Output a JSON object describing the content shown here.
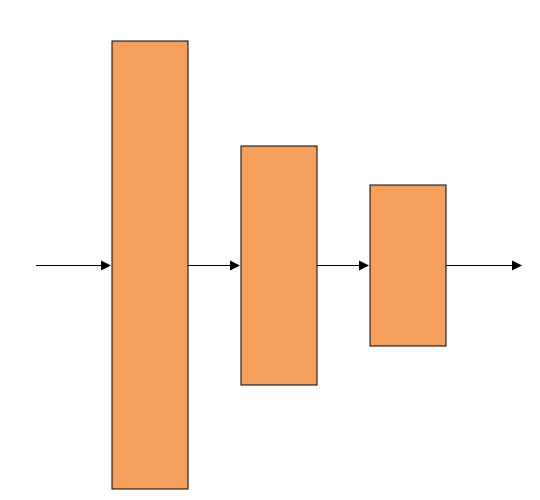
{
  "diagram": {
    "type": "flow",
    "node_fill": "#f4a05c",
    "node_stroke": "#000000",
    "edge_color": "#000000",
    "background": "#ffffff",
    "nodes": [
      {
        "id": "block-1",
        "label": ""
      },
      {
        "id": "block-2",
        "label": ""
      },
      {
        "id": "block-3",
        "label": ""
      }
    ],
    "edges": [
      {
        "from": "input",
        "to": "block-1"
      },
      {
        "from": "block-1",
        "to": "block-2"
      },
      {
        "from": "block-2",
        "to": "block-3"
      },
      {
        "from": "block-3",
        "to": "output"
      }
    ]
  }
}
